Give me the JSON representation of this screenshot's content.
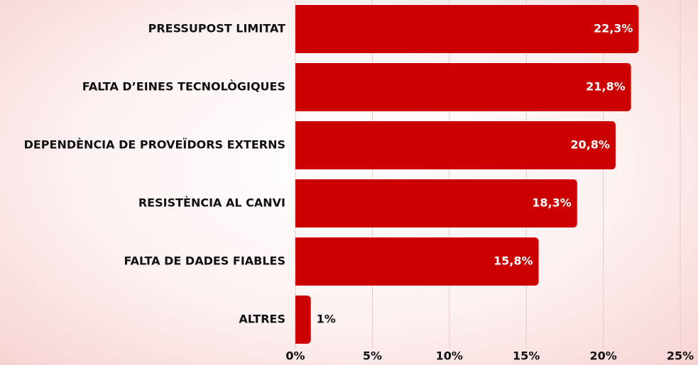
{
  "chart_data": {
    "type": "bar",
    "orientation": "horizontal",
    "categories": [
      "PRESSUPOST LIMITAT",
      "FALTA D’EINES TECNOLÒGIQUES",
      "DEPENDÈNCIA DE PROVEÏDORS EXTERNS",
      "RESISTÈNCIA AL CANVI",
      "FALTA DE DADES FIABLES",
      "ALTRES"
    ],
    "values": [
      22.3,
      21.8,
      20.8,
      18.3,
      15.8,
      1
    ],
    "value_labels": [
      "22,3%",
      "21,8%",
      "20,8%",
      "18,3%",
      "15,8%",
      "1%"
    ],
    "color": "#cc0000",
    "xlim": [
      0,
      25
    ],
    "xticks": [
      {
        "value": 0,
        "label": "0%"
      },
      {
        "value": 5,
        "label": "5%"
      },
      {
        "value": 10,
        "label": "10%"
      },
      {
        "value": 15,
        "label": "15%"
      },
      {
        "value": 20,
        "label": "20%"
      },
      {
        "value": 25,
        "label": "25%"
      }
    ],
    "grid": true
  }
}
